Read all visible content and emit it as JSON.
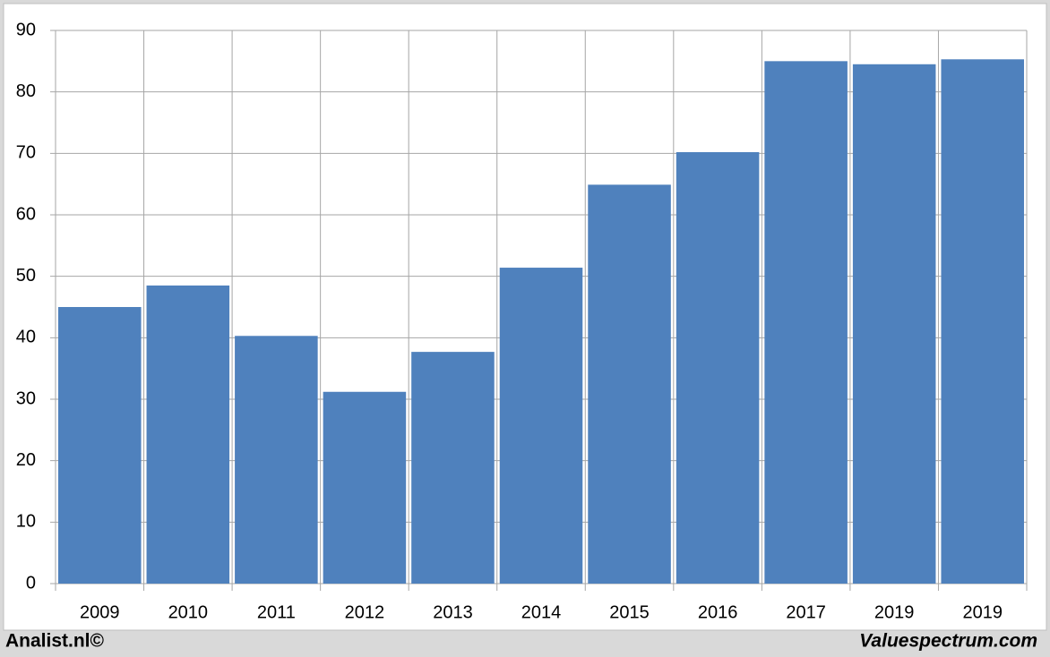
{
  "chart_data": {
    "type": "bar",
    "categories": [
      "2009",
      "2010",
      "2011",
      "2012",
      "2013",
      "2014",
      "2015",
      "2016",
      "2017",
      "2019",
      "2019"
    ],
    "values": [
      45.0,
      48.5,
      40.3,
      31.2,
      37.7,
      51.4,
      64.9,
      70.2,
      85.0,
      84.5,
      85.3
    ],
    "color": "#4f81bd",
    "ylim": [
      0,
      90
    ],
    "yticks": [
      0,
      10,
      20,
      30,
      40,
      50,
      60,
      70,
      80,
      90
    ],
    "grid": true
  },
  "footer": {
    "left": "Analist.nl©",
    "right": "Valuespectrum.com"
  }
}
